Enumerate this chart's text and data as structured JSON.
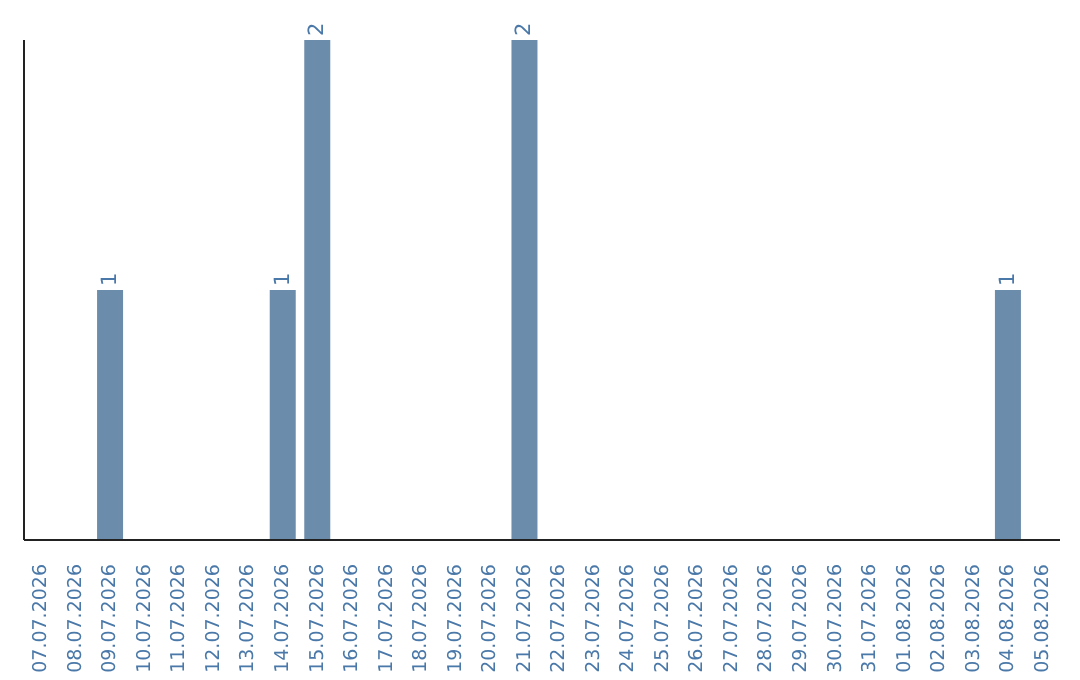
{
  "chart_data": {
    "type": "bar",
    "categories": [
      "07.07.2026",
      "08.07.2026",
      "09.07.2026",
      "10.07.2026",
      "11.07.2026",
      "12.07.2026",
      "13.07.2026",
      "14.07.2026",
      "15.07.2026",
      "16.07.2026",
      "17.07.2026",
      "18.07.2026",
      "19.07.2026",
      "20.07.2026",
      "21.07.2026",
      "22.07.2026",
      "23.07.2026",
      "24.07.2026",
      "25.07.2026",
      "26.07.2026",
      "27.07.2026",
      "28.07.2026",
      "29.07.2026",
      "30.07.2026",
      "31.07.2026",
      "01.08.2026",
      "02.08.2026",
      "03.08.2026",
      "04.08.2026",
      "05.08.2026"
    ],
    "values": [
      0,
      0,
      1,
      0,
      0,
      0,
      0,
      1,
      2,
      0,
      0,
      0,
      0,
      0,
      2,
      0,
      0,
      0,
      0,
      0,
      0,
      0,
      0,
      0,
      0,
      0,
      0,
      0,
      1,
      0
    ],
    "value_labels": [
      null,
      null,
      "1",
      null,
      null,
      null,
      null,
      "1",
      "2",
      null,
      null,
      null,
      null,
      null,
      "2",
      null,
      null,
      null,
      null,
      null,
      null,
      null,
      null,
      null,
      null,
      null,
      null,
      null,
      "1",
      null
    ],
    "color": "#6b8cab",
    "tick_labels": "x",
    "grid": false
  }
}
